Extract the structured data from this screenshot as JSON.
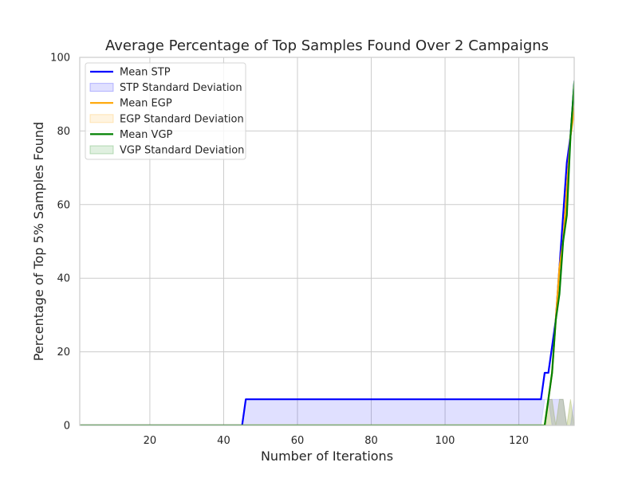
{
  "chart_data": {
    "type": "line",
    "title": "Average Percentage of Top Samples Found Over 2 Campaigns",
    "xlabel": "Number of Iterations",
    "ylabel": "Percentage of Top 5% Samples Found",
    "xlim": [
      1,
      135
    ],
    "ylim": [
      0,
      100
    ],
    "xticks": [
      20,
      40,
      60,
      80,
      100,
      120
    ],
    "yticks": [
      0,
      20,
      40,
      60,
      80,
      100
    ],
    "grid": true,
    "legend_position": "top-left",
    "legend": [
      {
        "label": "Mean STP",
        "kind": "line",
        "series": 0
      },
      {
        "label": "STP Standard Deviation",
        "kind": "band",
        "series": 0
      },
      {
        "label": "Mean EGP",
        "kind": "line",
        "series": 1
      },
      {
        "label": "EGP Standard Deviation",
        "kind": "band",
        "series": 1
      },
      {
        "label": "Mean VGP",
        "kind": "line",
        "series": 2
      },
      {
        "label": "VGP Standard Deviation",
        "kind": "band",
        "series": 2
      }
    ],
    "series": [
      {
        "name": "STP",
        "color": "#0000ff",
        "mean": [
          [
            1,
            0
          ],
          [
            45,
            0
          ],
          [
            46,
            7.1
          ],
          [
            126,
            7.1
          ],
          [
            127,
            14.3
          ],
          [
            128,
            14.3
          ],
          [
            129,
            21.4
          ],
          [
            130,
            28.6
          ],
          [
            131,
            42.9
          ],
          [
            132,
            57.1
          ],
          [
            133,
            71.4
          ],
          [
            134,
            78.6
          ],
          [
            135,
            92.9
          ],
          [
            136,
            100
          ]
        ],
        "band": [
          [
            1,
            0,
            0
          ],
          [
            45,
            0,
            0
          ],
          [
            46,
            0,
            7.1
          ],
          [
            126,
            0,
            7.1
          ],
          [
            127,
            7.1,
            7.1
          ],
          [
            128,
            7.1,
            7.1
          ],
          [
            129,
            0,
            7.1
          ],
          [
            130,
            0,
            7.1
          ],
          [
            131,
            0,
            7.1
          ],
          [
            132,
            0,
            7.1
          ],
          [
            133,
            0,
            0
          ],
          [
            134,
            0,
            0
          ],
          [
            135,
            0,
            7.1
          ],
          [
            136,
            0,
            0
          ]
        ]
      },
      {
        "name": "EGP",
        "color": "#ffa500",
        "mean": [
          [
            1,
            0
          ],
          [
            127,
            0
          ],
          [
            128,
            7.1
          ],
          [
            129,
            14.3
          ],
          [
            130,
            28.6
          ],
          [
            131,
            42.9
          ],
          [
            132,
            50
          ],
          [
            133,
            64.3
          ],
          [
            134,
            78.6
          ],
          [
            135,
            85.7
          ],
          [
            136,
            100
          ]
        ],
        "band": [
          [
            1,
            0,
            0
          ],
          [
            127,
            0,
            0
          ],
          [
            128,
            0,
            7.1
          ],
          [
            129,
            0,
            7.1
          ],
          [
            130,
            0,
            0
          ],
          [
            131,
            0,
            7.1
          ],
          [
            132,
            0,
            7.1
          ],
          [
            133,
            0,
            0
          ],
          [
            134,
            0,
            7.1
          ],
          [
            135,
            0,
            0
          ],
          [
            136,
            0,
            0
          ]
        ]
      },
      {
        "name": "VGP",
        "color": "#008000",
        "mean": [
          [
            1,
            0
          ],
          [
            127,
            0
          ],
          [
            128,
            7.1
          ],
          [
            129,
            14.3
          ],
          [
            130,
            28.6
          ],
          [
            131,
            35.7
          ],
          [
            132,
            50
          ],
          [
            133,
            57.1
          ],
          [
            134,
            78.6
          ],
          [
            135,
            92.9
          ],
          [
            136,
            100
          ]
        ],
        "band": [
          [
            1,
            0,
            0
          ],
          [
            127,
            0,
            0
          ],
          [
            128,
            0,
            7.1
          ],
          [
            129,
            0,
            7.1
          ],
          [
            130,
            0,
            0
          ],
          [
            131,
            0,
            7.1
          ],
          [
            132,
            0,
            7.1
          ],
          [
            133,
            0,
            0
          ],
          [
            134,
            0,
            7.1
          ],
          [
            135,
            0,
            0
          ],
          [
            136,
            0,
            0
          ]
        ]
      }
    ]
  }
}
